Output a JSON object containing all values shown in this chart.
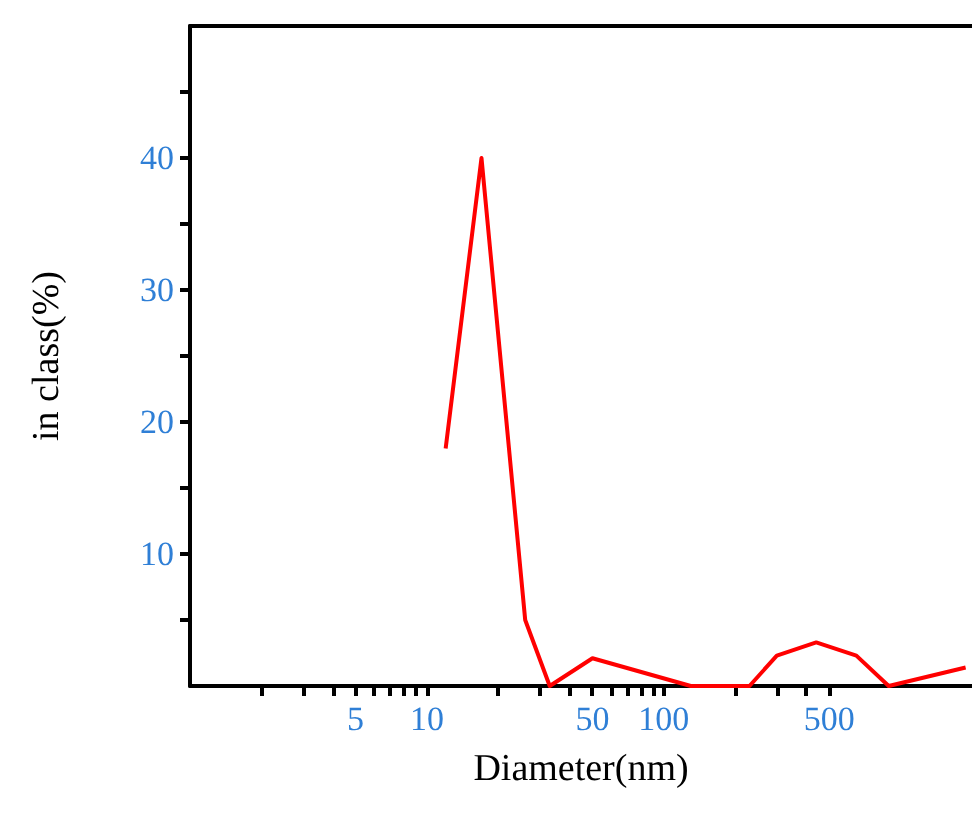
{
  "chart_data": {
    "type": "line",
    "xlabel": "Diameter(nm)",
    "ylabel": "in class(%)",
    "log": "x",
    "xlim": [
      1,
      2000
    ],
    "xticks": [
      {
        "value": 2,
        "label": null
      },
      {
        "value": 3,
        "label": null
      },
      {
        "value": 4,
        "label": null
      },
      5,
      {
        "value": 6,
        "label": null
      },
      {
        "value": 7,
        "label": null
      },
      {
        "value": 8,
        "label": null
      },
      {
        "value": 9,
        "label": null
      },
      10,
      {
        "value": 20,
        "label": null
      },
      {
        "value": 30,
        "label": null
      },
      {
        "value": 40,
        "label": null
      },
      50,
      {
        "value": 60,
        "label": null
      },
      {
        "value": 70,
        "label": null
      },
      {
        "value": 80,
        "label": null
      },
      {
        "value": 90,
        "label": null
      },
      100,
      {
        "value": 200,
        "label": null
      },
      {
        "value": 300,
        "label": null
      },
      {
        "value": 400,
        "label": null
      },
      500
    ],
    "ylim": [
      0,
      50
    ],
    "yticks": [
      {
        "value": 5,
        "label": null
      },
      10,
      {
        "value": 15,
        "label": null
      },
      20,
      {
        "value": 25,
        "label": null
      },
      30,
      {
        "value": 35,
        "label": null
      },
      40,
      {
        "value": 45,
        "label": null
      }
    ],
    "marker": "none",
    "line_style": "solid",
    "series": [
      {
        "color": "#ff0000",
        "x": [
          12,
          17,
          26,
          33,
          50,
          130,
          230,
          300,
          440,
          650,
          890,
          1880
        ],
        "values": [
          18,
          40,
          5,
          0,
          2.1,
          0,
          0,
          2.3,
          3.3,
          2.3,
          0,
          1.4
        ]
      }
    ]
  }
}
